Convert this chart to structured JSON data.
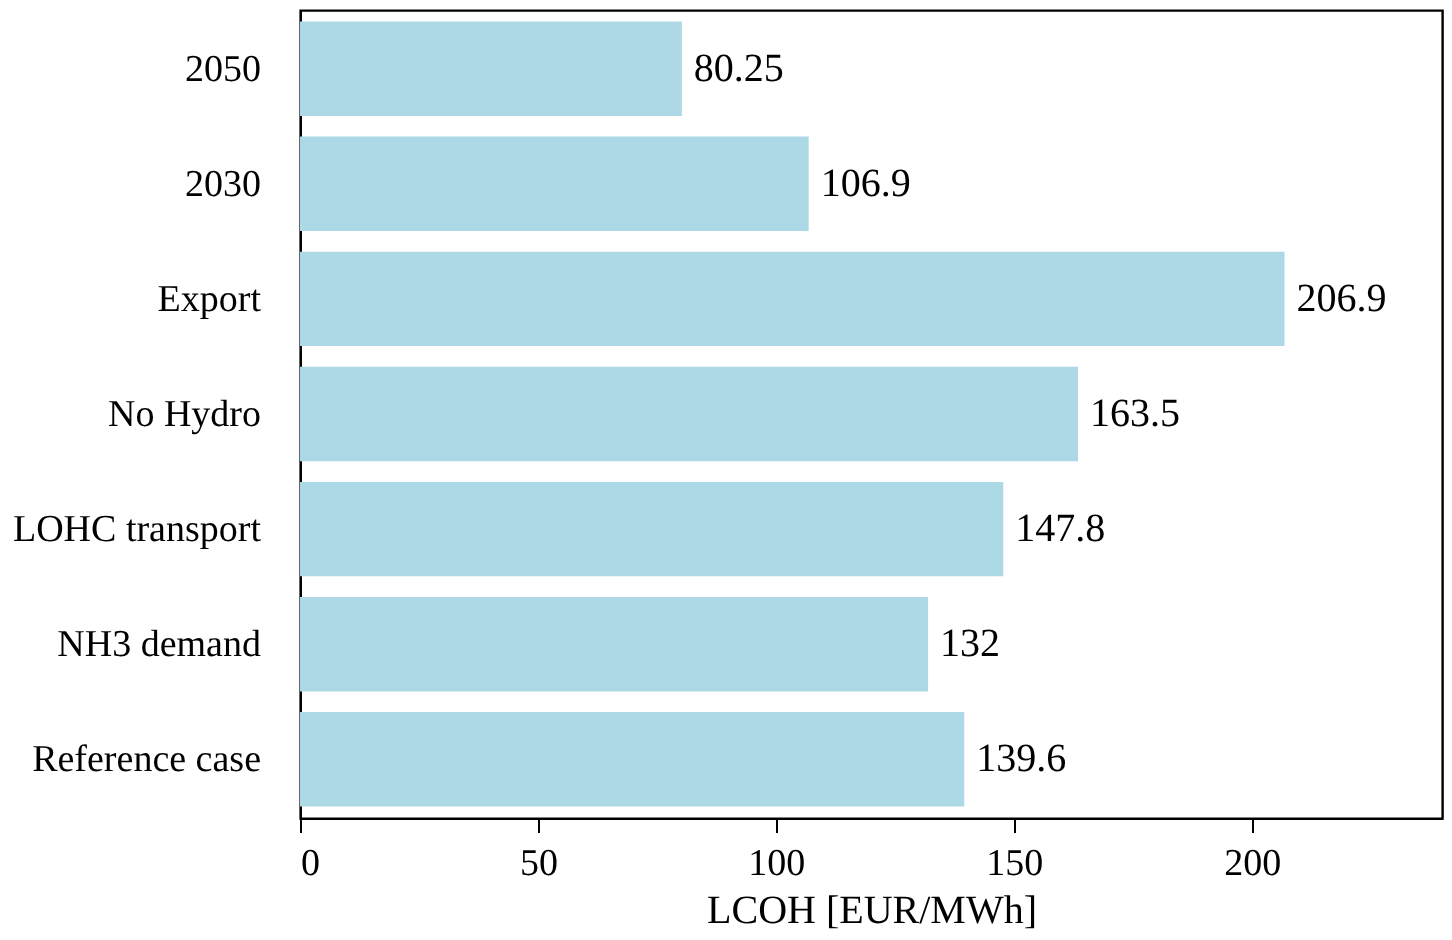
{
  "chart_data": {
    "type": "bar",
    "orientation": "horizontal",
    "xlabel": "LCOH [EUR/MWh]",
    "categories": [
      "2050",
      "2030",
      "Export",
      "No Hydro",
      "LOHC transport",
      "NH3 demand",
      "Reference case"
    ],
    "values": [
      80.25,
      106.9,
      206.9,
      163.5,
      147.8,
      132,
      139.6
    ],
    "color": "#add8e6",
    "xlim": [
      0,
      240
    ],
    "xticks": [
      0,
      50,
      100,
      150,
      200
    ],
    "data_labels": true,
    "grid": false
  }
}
